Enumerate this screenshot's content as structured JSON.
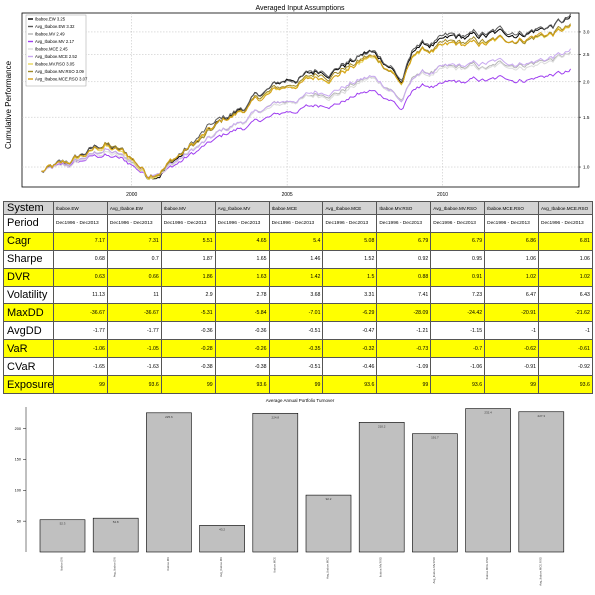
{
  "chart_data": [
    {
      "type": "line",
      "title": "Averaged Input Assumptions",
      "ylabel": "Cumulative Performance",
      "xlabel": "",
      "x_ticks": [
        "2000",
        "2005",
        "2010"
      ],
      "y_ticks": [
        "1.0",
        "1.5",
        "2.0",
        "2.5",
        "3.0"
      ],
      "log_scale": true,
      "ylim": [
        0.85,
        3.5
      ],
      "grid": true,
      "legend": "top-left",
      "series": [
        {
          "name": "Ibaboe.EW 3.25",
          "color": "#000000",
          "end": 3.25
        },
        {
          "name": "Avg_Ibaboe.EW 3.32",
          "color": "#5a5a5a",
          "end": 3.32
        },
        {
          "name": "Ibaboe.MV 2.49",
          "color": "#b5b5b5",
          "end": 2.49
        },
        {
          "name": "Avg_Ibaboe.MV 2.17",
          "color": "#9f3ff0",
          "end": 2.17
        },
        {
          "name": "Ibaboe.MCE 2.45",
          "color": "#dcdcdc",
          "end": 2.45
        },
        {
          "name": "Avg_Ibaboe.MCE 2.52",
          "color": "#c8a8f0",
          "end": 2.52
        },
        {
          "name": "Ibaboe.MV.RSO 3.05",
          "color": "#e8d75a",
          "end": 3.05
        },
        {
          "name": "Avg_Ibaboe.MV.RSO 3.09",
          "color": "#a08a2a",
          "end": 3.09
        },
        {
          "name": "Avg_Ibaboe.MCE.RSO 3.07",
          "color": "#d4a017",
          "end": 3.07
        }
      ]
    },
    {
      "type": "table",
      "row_header": "System",
      "columns": [
        "Ibaboe.EW",
        "Avg_Ibaboe.EW",
        "Ibaboe.MV",
        "Avg_Ibaboe.MV",
        "Ibaboe.MCE",
        "Avg_Ibaboe.MCE",
        "Ibaboe.MV.RSO",
        "Avg_Ibaboe.MV.RSO",
        "Ibaboe.MCE.RSO",
        "Avg_Ibaboe.MCE.RSO"
      ],
      "rows": [
        {
          "label": "Period",
          "highlight": false,
          "values": [
            "Dec1996 - Dec2013",
            "Dec1996 - Dec2013",
            "Dec1996 - Dec2013",
            "Dec1996 - Dec2013",
            "Dec1996 - Dec2013",
            "Dec1996 - Dec2013",
            "Dec1996 - Dec2013",
            "Dec1996 - Dec2013",
            "Dec1996 - Dec2013",
            "Dec1996 - Dec2013"
          ]
        },
        {
          "label": "Cagr",
          "highlight": true,
          "values": [
            "7.17",
            "7.31",
            "5.51",
            "4.65",
            "5.4",
            "5.08",
            "6.79",
            "6.79",
            "6.86",
            "6.81"
          ]
        },
        {
          "label": "Sharpe",
          "highlight": false,
          "values": [
            "0.68",
            "0.7",
            "1.87",
            "1.65",
            "1.46",
            "1.52",
            "0.92",
            "0.95",
            "1.06",
            "1.06"
          ]
        },
        {
          "label": "DVR",
          "highlight": true,
          "values": [
            "0.63",
            "0.66",
            "1.86",
            "1.63",
            "1.42",
            "1.5",
            "0.88",
            "0.91",
            "1.02",
            "1.02"
          ]
        },
        {
          "label": "Volatility",
          "highlight": false,
          "values": [
            "11.13",
            "11",
            "2.9",
            "2.78",
            "3.68",
            "3.31",
            "7.41",
            "7.23",
            "6.47",
            "6.43"
          ]
        },
        {
          "label": "MaxDD",
          "highlight": true,
          "values": [
            "-36.67",
            "-36.67",
            "-5.31",
            "-5.84",
            "-7.01",
            "-6.29",
            "-28.09",
            "-24.42",
            "-20.91",
            "-21.62"
          ]
        },
        {
          "label": "AvgDD",
          "highlight": false,
          "values": [
            "-1.77",
            "-1.77",
            "-0.36",
            "-0.36",
            "-0.51",
            "-0.47",
            "-1.21",
            "-1.15",
            "-1",
            "-1"
          ]
        },
        {
          "label": "VaR",
          "highlight": true,
          "values": [
            "-1.06",
            "-1.05",
            "-0.28",
            "-0.26",
            "-0.35",
            "-0.32",
            "-0.73",
            "-0.7",
            "-0.62",
            "-0.61"
          ]
        },
        {
          "label": "CVaR",
          "highlight": false,
          "values": [
            "-1.65",
            "-1.63",
            "-0.38",
            "-0.38",
            "-0.51",
            "-0.46",
            "-1.09",
            "-1.06",
            "-0.91",
            "-0.92"
          ]
        },
        {
          "label": "Exposure",
          "highlight": true,
          "values": [
            "99",
            "93.6",
            "99",
            "93.6",
            "99",
            "93.6",
            "99",
            "93.6",
            "99",
            "93.6"
          ]
        }
      ]
    },
    {
      "type": "bar",
      "title": "Average Annual Portfolio Turnover",
      "categories": [
        "Ibaboe.EW",
        "Avg_Ibaboe.EW",
        "Ibaboe.MV",
        "Avg_Ibaboe.MV",
        "Ibaboe.MCE",
        "Avg_Ibaboe.MCE",
        "Ibaboe.MV.RSO",
        "Avg_Ibaboe.MV.RSO",
        "Ibaboe.MCE.RSO",
        "Avg_Ibaboe.MCE.RSO"
      ],
      "values": [
        52.3,
        54.8,
        225.6,
        43.2,
        224.8,
        92.2,
        210.2,
        191.7,
        232.4,
        227.3
      ],
      "y_ticks": [
        50,
        100,
        150,
        200
      ],
      "ylim": [
        0,
        235
      ]
    }
  ]
}
